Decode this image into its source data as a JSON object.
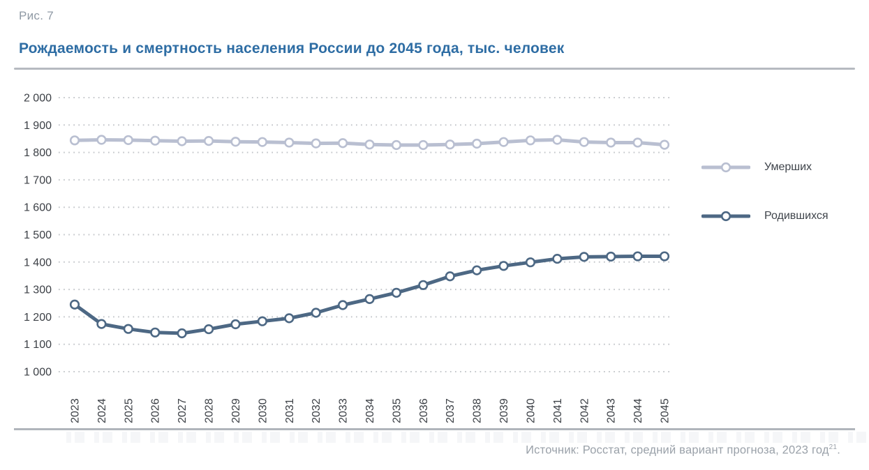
{
  "figure": {
    "label": "Рис. 7",
    "title": "Рождаемость и смертность населения России до 2045 года, тыс. человек"
  },
  "footer": {
    "source_text": "Источник: Росстат, средний вариант прогноза, 2023 год",
    "source_superscript": "21",
    "source_end": "."
  },
  "colors": {
    "title": "#2e6da4",
    "figure_label": "#8f99a4",
    "axis_text": "#3c4046",
    "grid": "#c3c6ca",
    "divider": "#b6bac0",
    "footer_text": "#9aa1a9",
    "series_deaths": "#b9bfd1",
    "series_births": "#4d6884",
    "marker_fill": "#ffffff"
  },
  "chart_data": {
    "type": "line",
    "title": "Рождаемость и смертность населения России до 2045 года, тыс. человек",
    "xlabel": "",
    "ylabel": "тыс. человек",
    "ylim": [
      1000,
      2000
    ],
    "y_ticks": [
      2000,
      1900,
      1800,
      1700,
      1600,
      1500,
      1400,
      1300,
      1200,
      1100,
      1000
    ],
    "grid": "dotted-horizontal",
    "legend_position": "right",
    "marker": "open-circle",
    "x": [
      2023,
      2024,
      2025,
      2026,
      2027,
      2028,
      2029,
      2030,
      2031,
      2032,
      2033,
      2034,
      2035,
      2036,
      2037,
      2038,
      2039,
      2040,
      2041,
      2042,
      2043,
      2044,
      2045
    ],
    "series": [
      {
        "id": "deaths",
        "name": "Умерших",
        "color": "#b9bfd1",
        "values": [
          1844,
          1846,
          1845,
          1843,
          1841,
          1842,
          1839,
          1838,
          1836,
          1833,
          1834,
          1829,
          1827,
          1827,
          1829,
          1832,
          1838,
          1844,
          1846,
          1838,
          1836,
          1836,
          1828
        ]
      },
      {
        "id": "births",
        "name": "Родившихся",
        "color": "#4d6884",
        "values": [
          1245,
          1174,
          1156,
          1143,
          1140,
          1155,
          1173,
          1184,
          1195,
          1215,
          1243,
          1265,
          1288,
          1316,
          1348,
          1370,
          1386,
          1399,
          1412,
          1419,
          1420,
          1421,
          1421
        ]
      }
    ]
  }
}
